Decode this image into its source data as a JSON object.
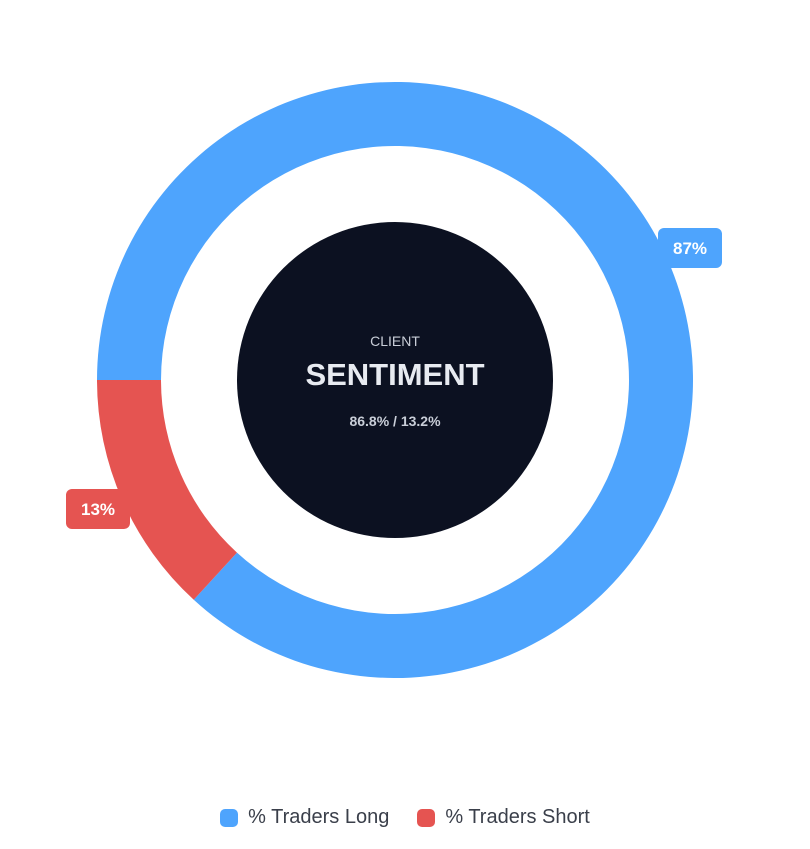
{
  "chart_data": {
    "type": "pie",
    "variant": "donut",
    "categories": [
      "% Traders Long",
      "% Traders Short"
    ],
    "values": [
      86.8,
      13.2
    ],
    "data_labels": [
      "87%",
      "13%"
    ],
    "colors": [
      "#4ea4fd",
      "#e55451"
    ],
    "center": {
      "kicker": "CLIENT",
      "title": "SENTIMENT",
      "subtitle": "86.8% / 13.2%"
    },
    "legend_position": "bottom"
  }
}
